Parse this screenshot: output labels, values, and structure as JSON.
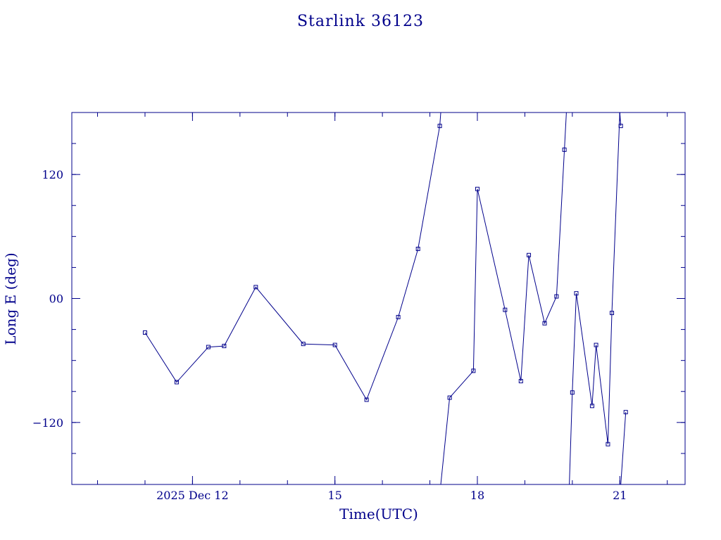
{
  "chart_data": {
    "type": "line",
    "title": "Starlink 36123",
    "xlabel": "Time(UTC)",
    "ylabel": "Long E (deg)",
    "xlim": [
      "2025-12-09T11:00",
      "2025-12-22T09:00"
    ],
    "ylim": [
      -180,
      180
    ],
    "x_ticks": [
      {
        "value": "2025-12-12",
        "label": "2025 Dec 12"
      },
      {
        "value": "2025-12-15",
        "label": "15"
      },
      {
        "value": "2025-12-18",
        "label": "18"
      },
      {
        "value": "2025-12-21",
        "label": "21"
      }
    ],
    "y_ticks": [
      {
        "value": 120,
        "label": "120"
      },
      {
        "value": 0,
        "label": "00"
      },
      {
        "value": -120,
        "label": "−120"
      }
    ],
    "grid": false,
    "series": [
      {
        "color": "#00008b",
        "points": [
          {
            "x": "2025-12-11T00:00",
            "y": -33
          },
          {
            "x": "2025-12-11T16:00",
            "y": -81
          },
          {
            "x": "2025-12-12T08:00",
            "y": -47
          },
          {
            "x": "2025-12-12T16:00",
            "y": -46
          },
          {
            "x": "2025-12-13T08:00",
            "y": 11
          },
          {
            "x": "2025-12-14T08:00",
            "y": -44
          },
          {
            "x": "2025-12-15T00:00",
            "y": -45
          },
          {
            "x": "2025-12-15T16:00",
            "y": -98
          },
          {
            "x": "2025-12-16T08:00",
            "y": -18
          },
          {
            "x": "2025-12-16T18:00",
            "y": 48
          },
          {
            "x": "2025-12-17T05:00",
            "y": 167
          },
          {
            "x": "2025-12-17T05:30",
            "y": 180,
            "break_after": true
          },
          {
            "x": "2025-12-17T05:30",
            "y": -180
          },
          {
            "x": "2025-12-17T10:00",
            "y": -96
          },
          {
            "x": "2025-12-17T22:00",
            "y": -70
          },
          {
            "x": "2025-12-18T00:00",
            "y": 106
          },
          {
            "x": "2025-12-18T14:00",
            "y": -11
          },
          {
            "x": "2025-12-18T22:00",
            "y": -80
          },
          {
            "x": "2025-12-19T02:00",
            "y": 42
          },
          {
            "x": "2025-12-19T10:00",
            "y": -24
          },
          {
            "x": "2025-12-19T16:00",
            "y": 2
          },
          {
            "x": "2025-12-19T20:00",
            "y": 144
          },
          {
            "x": "2025-12-19T21:00",
            "y": 180,
            "break_after": true
          },
          {
            "x": "2025-12-19T22:30",
            "y": -180
          },
          {
            "x": "2025-12-20T00:00",
            "y": -91
          },
          {
            "x": "2025-12-20T02:00",
            "y": 5
          },
          {
            "x": "2025-12-20T10:00",
            "y": -104
          },
          {
            "x": "2025-12-20T12:00",
            "y": -45
          },
          {
            "x": "2025-12-20T18:00",
            "y": -141
          },
          {
            "x": "2025-12-20T20:00",
            "y": -14
          },
          {
            "x": "2025-12-21T00:00",
            "y": 180
          },
          {
            "x": "2025-12-21T00:30",
            "y": 167,
            "break_after": true
          },
          {
            "x": "2025-12-21T00:30",
            "y": -180
          },
          {
            "x": "2025-12-21T03:00",
            "y": -110
          }
        ]
      }
    ]
  }
}
